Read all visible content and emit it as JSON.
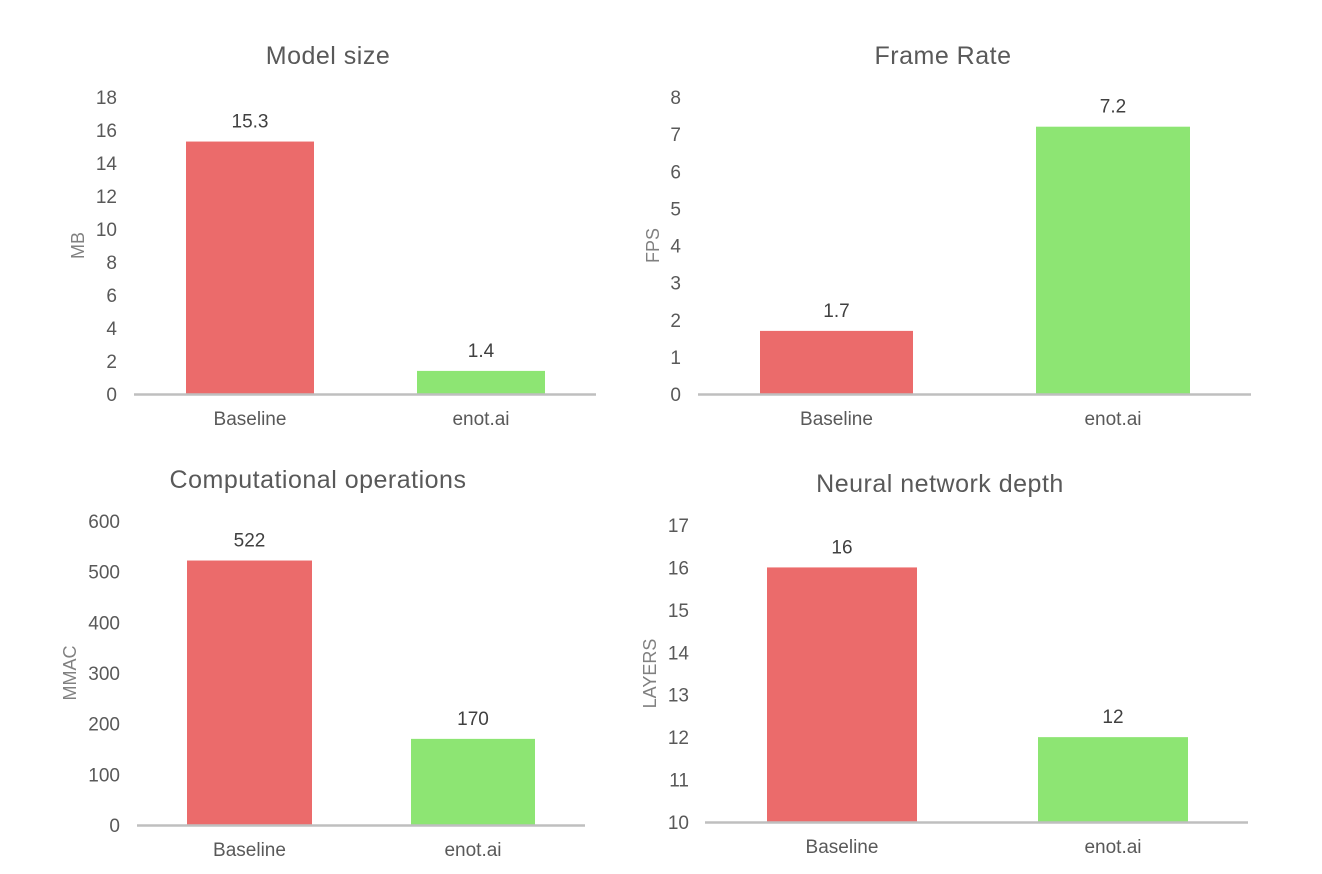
{
  "colors": {
    "baseline": "#eb6b6b",
    "enot": "#8de573",
    "axis": "#bfbfbf"
  },
  "chart_data": [
    {
      "type": "bar",
      "title": "Model size",
      "ylabel": "MB",
      "categories": [
        "Baseline",
        "enot.ai"
      ],
      "values": [
        15.3,
        1.4
      ],
      "data_labels": [
        "15.3",
        "1.4"
      ],
      "ylim": [
        0,
        18
      ],
      "yticks": [
        0,
        2,
        4,
        6,
        8,
        10,
        12,
        14,
        16,
        18
      ],
      "grid": false,
      "legend": "none"
    },
    {
      "type": "bar",
      "title": "Frame Rate",
      "ylabel": "FPS",
      "categories": [
        "Baseline",
        "enot.ai"
      ],
      "values": [
        1.7,
        7.2
      ],
      "data_labels": [
        "1.7",
        "7.2"
      ],
      "ylim": [
        0,
        8
      ],
      "yticks": [
        0,
        1,
        2,
        3,
        4,
        5,
        6,
        7,
        8
      ],
      "grid": false,
      "legend": "none"
    },
    {
      "type": "bar",
      "title": "Computational operations",
      "ylabel": "MMAC",
      "categories": [
        "Baseline",
        "enot.ai"
      ],
      "values": [
        522,
        170
      ],
      "data_labels": [
        "522",
        "170"
      ],
      "ylim": [
        0,
        600
      ],
      "yticks": [
        0,
        100,
        200,
        300,
        400,
        500,
        600
      ],
      "grid": false,
      "legend": "none"
    },
    {
      "type": "bar",
      "title": "Neural network depth",
      "ylabel": "LAYERS",
      "categories": [
        "Baseline",
        "enot.ai"
      ],
      "values": [
        16,
        12
      ],
      "data_labels": [
        "16",
        "12"
      ],
      "ylim": [
        10,
        17
      ],
      "yticks": [
        10,
        11,
        12,
        13,
        14,
        15,
        16,
        17
      ],
      "grid": false,
      "legend": "none"
    }
  ]
}
